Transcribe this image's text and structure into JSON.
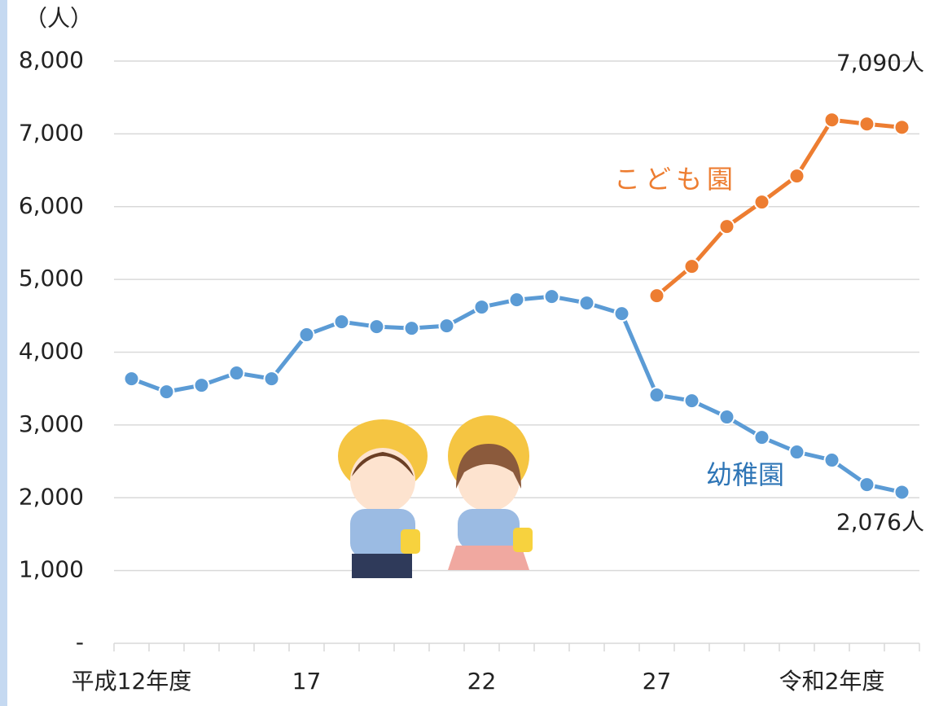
{
  "chart_data": {
    "type": "line",
    "y_label": "（人）",
    "categories": [
      "平成12年度",
      null,
      null,
      null,
      null,
      "17",
      null,
      null,
      null,
      null,
      "22",
      null,
      null,
      null,
      null,
      "27",
      null,
      null,
      null,
      null,
      "令和2年度",
      null,
      null
    ],
    "series": [
      {
        "name": "幼稚園",
        "color": "#5b9bd5",
        "values": [
          3635,
          3456,
          3546,
          3714,
          3635,
          4240,
          4418,
          4351,
          4329,
          4362,
          4620,
          4720,
          4765,
          4676,
          4530,
          3412,
          3333,
          3110,
          2830,
          2629,
          2517,
          2181,
          2076
        ],
        "value_labels": [
          null,
          null,
          null,
          null,
          null,
          null,
          null,
          null,
          null,
          null,
          null,
          null,
          null,
          null,
          null,
          null,
          null,
          null,
          null,
          null,
          null,
          null,
          "2,076人"
        ]
      },
      {
        "name": "こども園",
        "color": "#ed7d31",
        "values": [
          null,
          null,
          null,
          null,
          null,
          null,
          null,
          null,
          null,
          null,
          null,
          null,
          null,
          null,
          null,
          4776,
          5179,
          5727,
          6063,
          6421,
          7192,
          7136,
          7090
        ],
        "value_labels": [
          null,
          null,
          null,
          null,
          null,
          null,
          null,
          null,
          null,
          null,
          null,
          null,
          null,
          null,
          null,
          null,
          null,
          null,
          null,
          null,
          null,
          null,
          "7,090人"
        ]
      }
    ],
    "ylim": [
      0,
      8000
    ],
    "yticks": [
      {
        "value": 0,
        "label": "-"
      },
      {
        "value": 1000,
        "label": "1,000"
      },
      {
        "value": 2000,
        "label": "2,000"
      },
      {
        "value": 3000,
        "label": "3,000"
      },
      {
        "value": 4000,
        "label": "4,000"
      },
      {
        "value": 5000,
        "label": "5,000"
      },
      {
        "value": 6000,
        "label": "6,000"
      },
      {
        "value": 7000,
        "label": "7,000"
      },
      {
        "value": 8000,
        "label": "8,000"
      }
    ],
    "grid": true
  }
}
